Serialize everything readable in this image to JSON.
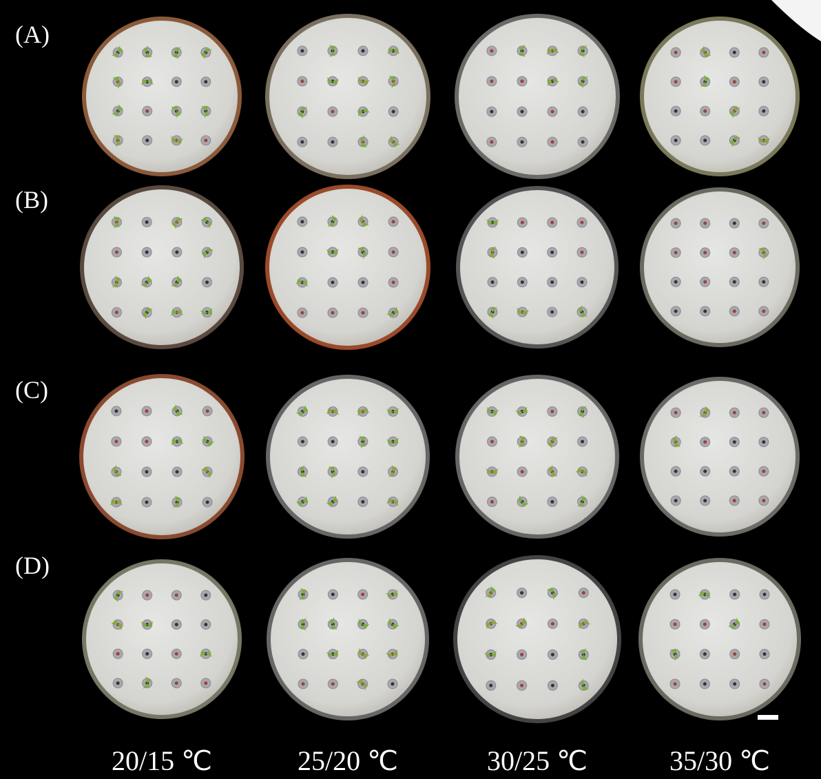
{
  "row_labels": [
    "(A)",
    "(B)",
    "(C)",
    "(D)"
  ],
  "column_labels": [
    "20/15 ℃",
    "25/20 ℃",
    "30/25 ℃",
    "35/30 ℃"
  ]
}
